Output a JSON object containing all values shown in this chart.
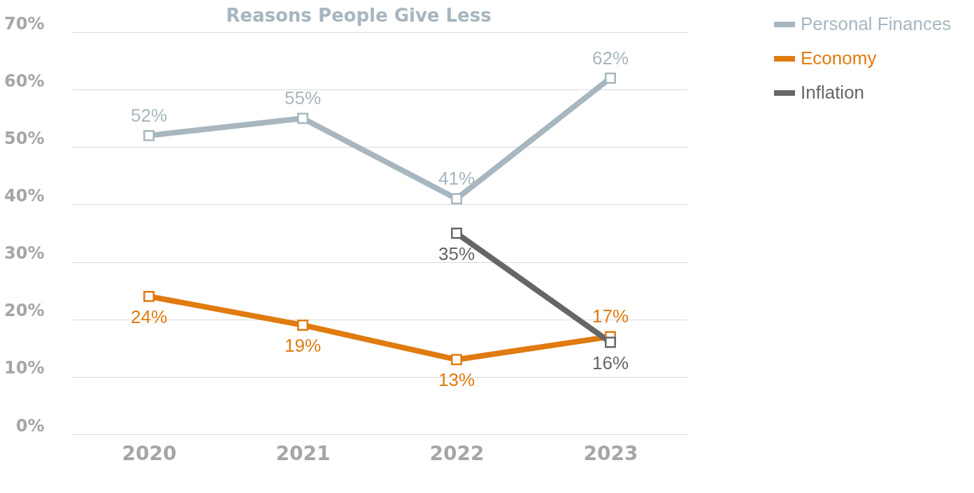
{
  "chart_data": {
    "type": "line",
    "title": "Reasons People Give Less",
    "categories": [
      "2020",
      "2021",
      "2022",
      "2023"
    ],
    "series": [
      {
        "name": "Personal Finances",
        "color": "#a7b6bf",
        "values": [
          52,
          55,
          41,
          62
        ],
        "value_labels": [
          "52%",
          "55%",
          "41%",
          "62%"
        ]
      },
      {
        "name": "Economy",
        "color": "#e07b10",
        "values": [
          24,
          19,
          13,
          17
        ],
        "value_labels": [
          "24%",
          "19%",
          "13%",
          "17%"
        ]
      },
      {
        "name": "Inflation",
        "color": "#666666",
        "values": [
          null,
          null,
          35,
          16
        ],
        "value_labels": [
          null,
          null,
          "35%",
          "16%"
        ]
      }
    ],
    "ylim": [
      0,
      70
    ],
    "yticks": [
      {
        "value": 0,
        "label": "0%"
      },
      {
        "value": 10,
        "label": "10%"
      },
      {
        "value": 20,
        "label": "20%"
      },
      {
        "value": 30,
        "label": "30%"
      },
      {
        "value": 40,
        "label": "40%"
      },
      {
        "value": 50,
        "label": "50%"
      },
      {
        "value": 60,
        "label": "60%"
      },
      {
        "value": 70,
        "label": "70%"
      }
    ],
    "grid": "y",
    "legend": "top right",
    "marker": "square",
    "line_style": "solid"
  }
}
